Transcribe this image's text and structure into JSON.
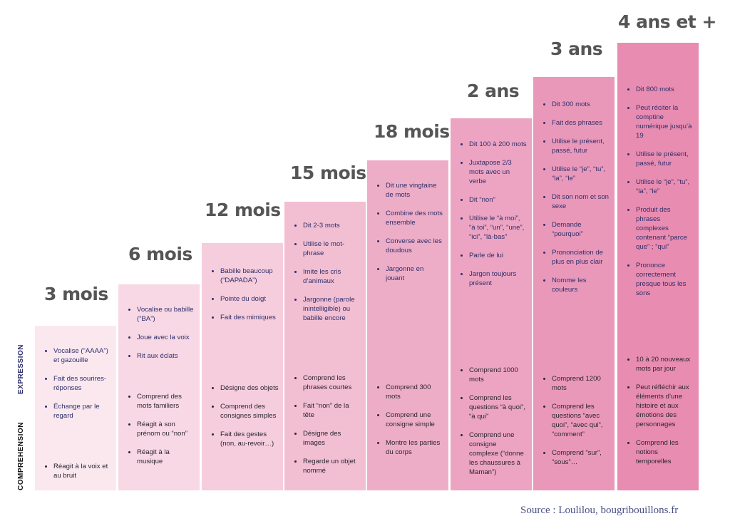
{
  "side_labels": {
    "expression": "EXPRESSION",
    "comprehension": "COMPREHENSION"
  },
  "columns": [
    {
      "title": "3 mois",
      "color": "#fbe8ef",
      "expression": [
        "Vocalise (“AAAA”) et gazouille",
        "Fait des sourires-réponses",
        "Échange par le regard"
      ],
      "comprehension": [
        "Réagit à la voix et au bruit"
      ]
    },
    {
      "title": "6 mois",
      "color": "#f8d8e4",
      "expression": [
        "Vocalise ou babille (“BA”)",
        "Joue avec la voix",
        "Rit aux éclats"
      ],
      "comprehension": [
        "Comprend des mots familiers",
        "Réagit à son prénom ou “non”",
        "Réagit à la musique"
      ]
    },
    {
      "title": "12 mois",
      "color": "#f6cddc",
      "expression": [
        "Babille beaucoup (“DAPADA”)",
        "Pointe du doigt",
        "Fait des mimiques"
      ],
      "comprehension": [
        "Désigne des objets",
        "Comprend des consignes simples",
        "Fait des gestes (non, au-revoir…)"
      ]
    },
    {
      "title": "15 mois",
      "color": "#f2bed2",
      "expression": [
        "Dit 2-3 mots",
        "Utilise le mot-phrase",
        "Imite les cris d’animaux",
        "Jargonne (parole inintelligible) ou babille encore"
      ],
      "comprehension": [
        "Comprend les phrases courtes",
        "Fait “non” de la tête",
        "Désigne des images",
        "Regarde un objet nommé"
      ]
    },
    {
      "title": "18 mois",
      "color": "#eeadc7",
      "expression": [
        "Dit une vingtaine de mots",
        "Combine des mots ensemble",
        "Converse avec les doudous",
        "Jargonne en jouant"
      ],
      "comprehension": [
        "Comprend 300 mots",
        "Comprend une consigne simple",
        "Montre les parties du corps"
      ]
    },
    {
      "title": "2 ans",
      "color": "#eca4c2",
      "expression": [
        "Dit 100 à 200 mots",
        "Juxtapose 2/3 mots avec un verbe",
        "Dit “non”",
        "Utilise le “à moi”, “à toi”, “un”, “une”, “ici”, “là-bas”",
        "Parle de lui",
        "Jargon toujours présent"
      ],
      "comprehension": [
        "Comprend 1000 mots",
        "Comprend les questions “à quoi”, “à qui”",
        "Comprend une consigne complexe (“donne les chaussures à Maman”)"
      ]
    },
    {
      "title": "3 ans",
      "color": "#ea98ba",
      "expression": [
        "Dit 300 mots",
        "Fait des phrases",
        "Utilise le présent, passé, futur",
        "Utilise le “je”, “tu”, “la”, “le”",
        "Dit son nom et son sexe",
        "Demande “pourquoi”",
        "Prononciation de plus en plus clair",
        "Nomme les couleurs"
      ],
      "comprehension": [
        "Comprend 1200 mots",
        "Comprend les questions “avec quoi”, “avec qui”, “comment”",
        "Comprend “sur”, “sous”…"
      ]
    },
    {
      "title": "4 ans et +",
      "color": "#e98cb1",
      "expression": [
        "Dit 800 mots",
        "Peut réciter la comptine numérique jusqu’à 19",
        "Utilise le présent, passé, futur",
        "Utilise le “je”, “tu”, “la”, “le”",
        "Produit des phrases complexes contenant “parce que” ; “qui”",
        "Prononce correctement presque tous les sons"
      ],
      "comprehension": [
        "10 à 20 nouveaux mots par jour",
        "Peut réfléchir aux éléments d’une histoire et aux émotions des personnages",
        "Comprend les notions temporelles"
      ]
    }
  ],
  "source": "Source : Loulilou, bougribouillons.fr",
  "colors": {
    "expression_label": "#2d2f6b",
    "comprehension_label": "#111111",
    "title": "#555555"
  }
}
